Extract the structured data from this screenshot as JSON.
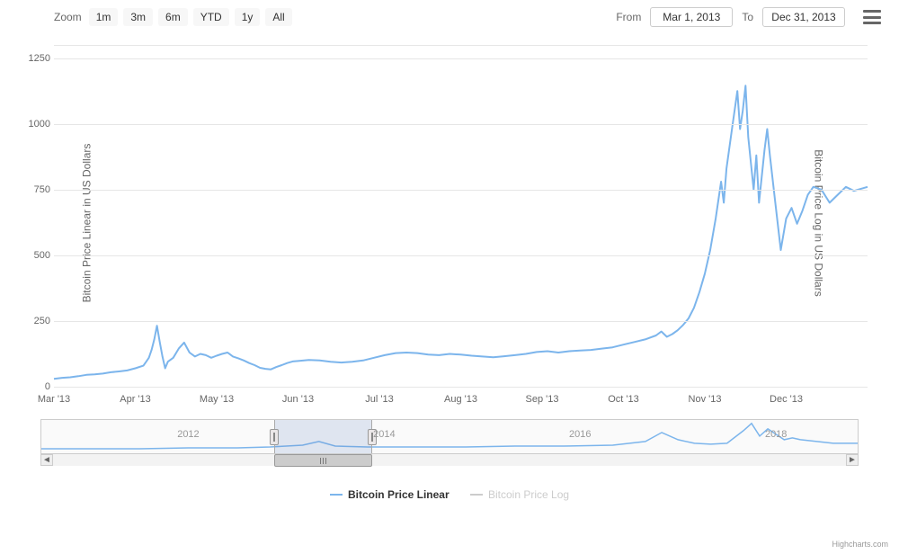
{
  "toolbar": {
    "zoom_label": "Zoom",
    "buttons": [
      "1m",
      "3m",
      "6m",
      "YTD",
      "1y",
      "All"
    ],
    "from_label": "From",
    "to_label": "To",
    "from_value": "Mar 1, 2013",
    "to_value": "Dec 31, 2013"
  },
  "chart": {
    "type": "line",
    "y_label_left": "Bitcoin Price Linear in US Dollars",
    "y_label_right": "Bitcoin Price Log in US Dollars",
    "ylim": [
      0,
      1300
    ],
    "yticks": [
      0,
      250,
      500,
      750,
      1000,
      1250
    ],
    "x_labels": [
      "Mar '13",
      "Apr '13",
      "May '13",
      "Jun '13",
      "Jul '13",
      "Aug '13",
      "Sep '13",
      "Oct '13",
      "Nov '13",
      "Dec '13"
    ],
    "line_color": "#7cb5ec",
    "line_width": 2,
    "grid_color": "#e6e6e6",
    "background_color": "#ffffff",
    "series": [
      [
        0,
        30
      ],
      [
        3,
        34
      ],
      [
        6,
        36
      ],
      [
        9,
        40
      ],
      [
        12,
        45
      ],
      [
        15,
        47
      ],
      [
        18,
        50
      ],
      [
        21,
        55
      ],
      [
        24,
        58
      ],
      [
        27,
        62
      ],
      [
        30,
        70
      ],
      [
        33,
        80
      ],
      [
        34,
        95
      ],
      [
        35,
        110
      ],
      [
        36,
        140
      ],
      [
        37,
        180
      ],
      [
        38,
        232
      ],
      [
        39,
        170
      ],
      [
        40,
        115
      ],
      [
        41,
        70
      ],
      [
        42,
        95
      ],
      [
        44,
        110
      ],
      [
        46,
        145
      ],
      [
        48,
        168
      ],
      [
        50,
        130
      ],
      [
        52,
        115
      ],
      [
        54,
        125
      ],
      [
        56,
        120
      ],
      [
        58,
        110
      ],
      [
        60,
        118
      ],
      [
        62,
        125
      ],
      [
        64,
        130
      ],
      [
        66,
        115
      ],
      [
        68,
        108
      ],
      [
        70,
        100
      ],
      [
        72,
        90
      ],
      [
        74,
        82
      ],
      [
        76,
        72
      ],
      [
        78,
        68
      ],
      [
        80,
        66
      ],
      [
        82,
        75
      ],
      [
        84,
        82
      ],
      [
        86,
        90
      ],
      [
        88,
        96
      ],
      [
        90,
        98
      ],
      [
        94,
        102
      ],
      [
        98,
        100
      ],
      [
        102,
        95
      ],
      [
        106,
        92
      ],
      [
        110,
        95
      ],
      [
        114,
        100
      ],
      [
        118,
        110
      ],
      [
        122,
        120
      ],
      [
        126,
        128
      ],
      [
        130,
        130
      ],
      [
        134,
        128
      ],
      [
        138,
        122
      ],
      [
        142,
        120
      ],
      [
        146,
        125
      ],
      [
        150,
        122
      ],
      [
        154,
        118
      ],
      [
        158,
        115
      ],
      [
        162,
        112
      ],
      [
        166,
        116
      ],
      [
        170,
        120
      ],
      [
        174,
        125
      ],
      [
        178,
        132
      ],
      [
        182,
        135
      ],
      [
        186,
        130
      ],
      [
        190,
        135
      ],
      [
        194,
        138
      ],
      [
        198,
        140
      ],
      [
        202,
        145
      ],
      [
        206,
        150
      ],
      [
        210,
        160
      ],
      [
        214,
        170
      ],
      [
        218,
        180
      ],
      [
        222,
        195
      ],
      [
        224,
        210
      ],
      [
        226,
        190
      ],
      [
        228,
        200
      ],
      [
        230,
        215
      ],
      [
        232,
        235
      ],
      [
        234,
        260
      ],
      [
        236,
        300
      ],
      [
        238,
        360
      ],
      [
        240,
        430
      ],
      [
        242,
        520
      ],
      [
        244,
        640
      ],
      [
        246,
        780
      ],
      [
        247,
        700
      ],
      [
        248,
        830
      ],
      [
        250,
        980
      ],
      [
        252,
        1125
      ],
      [
        253,
        980
      ],
      [
        254,
        1050
      ],
      [
        255,
        1145
      ],
      [
        256,
        950
      ],
      [
        258,
        750
      ],
      [
        259,
        880
      ],
      [
        260,
        700
      ],
      [
        262,
        900
      ],
      [
        263,
        980
      ],
      [
        264,
        880
      ],
      [
        266,
        700
      ],
      [
        268,
        520
      ],
      [
        270,
        640
      ],
      [
        272,
        680
      ],
      [
        274,
        620
      ],
      [
        276,
        670
      ],
      [
        278,
        730
      ],
      [
        280,
        760
      ],
      [
        283,
        750
      ],
      [
        286,
        700
      ],
      [
        289,
        730
      ],
      [
        292,
        760
      ],
      [
        295,
        745
      ],
      [
        300,
        760
      ]
    ]
  },
  "navigator": {
    "year_labels": [
      "2012",
      "2014",
      "2016",
      "2018"
    ],
    "year_positions_pct": [
      18,
      42,
      66,
      90
    ],
    "window_left_pct": 28.5,
    "window_width_pct": 12,
    "mini_color": "#7cb5ec",
    "mini_series": [
      [
        0,
        4
      ],
      [
        6,
        4
      ],
      [
        12,
        4
      ],
      [
        18,
        5
      ],
      [
        24,
        5
      ],
      [
        28,
        6
      ],
      [
        32,
        8
      ],
      [
        34,
        12
      ],
      [
        36,
        7
      ],
      [
        40,
        6
      ],
      [
        46,
        6
      ],
      [
        52,
        6
      ],
      [
        58,
        7
      ],
      [
        64,
        7
      ],
      [
        70,
        8
      ],
      [
        74,
        12
      ],
      [
        76,
        22
      ],
      [
        78,
        14
      ],
      [
        80,
        10
      ],
      [
        82,
        9
      ],
      [
        84,
        10
      ],
      [
        86,
        24
      ],
      [
        87,
        32
      ],
      [
        88,
        18
      ],
      [
        89,
        26
      ],
      [
        90,
        20
      ],
      [
        91,
        14
      ],
      [
        92,
        16
      ],
      [
        93,
        14
      ],
      [
        94,
        13
      ],
      [
        95,
        12
      ],
      [
        96,
        11
      ],
      [
        97,
        10
      ],
      [
        98,
        10
      ],
      [
        99,
        10
      ],
      [
        100,
        10
      ]
    ]
  },
  "legend": {
    "active": {
      "label": "Bitcoin Price Linear",
      "color": "#7cb5ec"
    },
    "inactive": {
      "label": "Bitcoin Price Log",
      "color": "#cccccc"
    }
  },
  "credits": "Highcharts.com"
}
